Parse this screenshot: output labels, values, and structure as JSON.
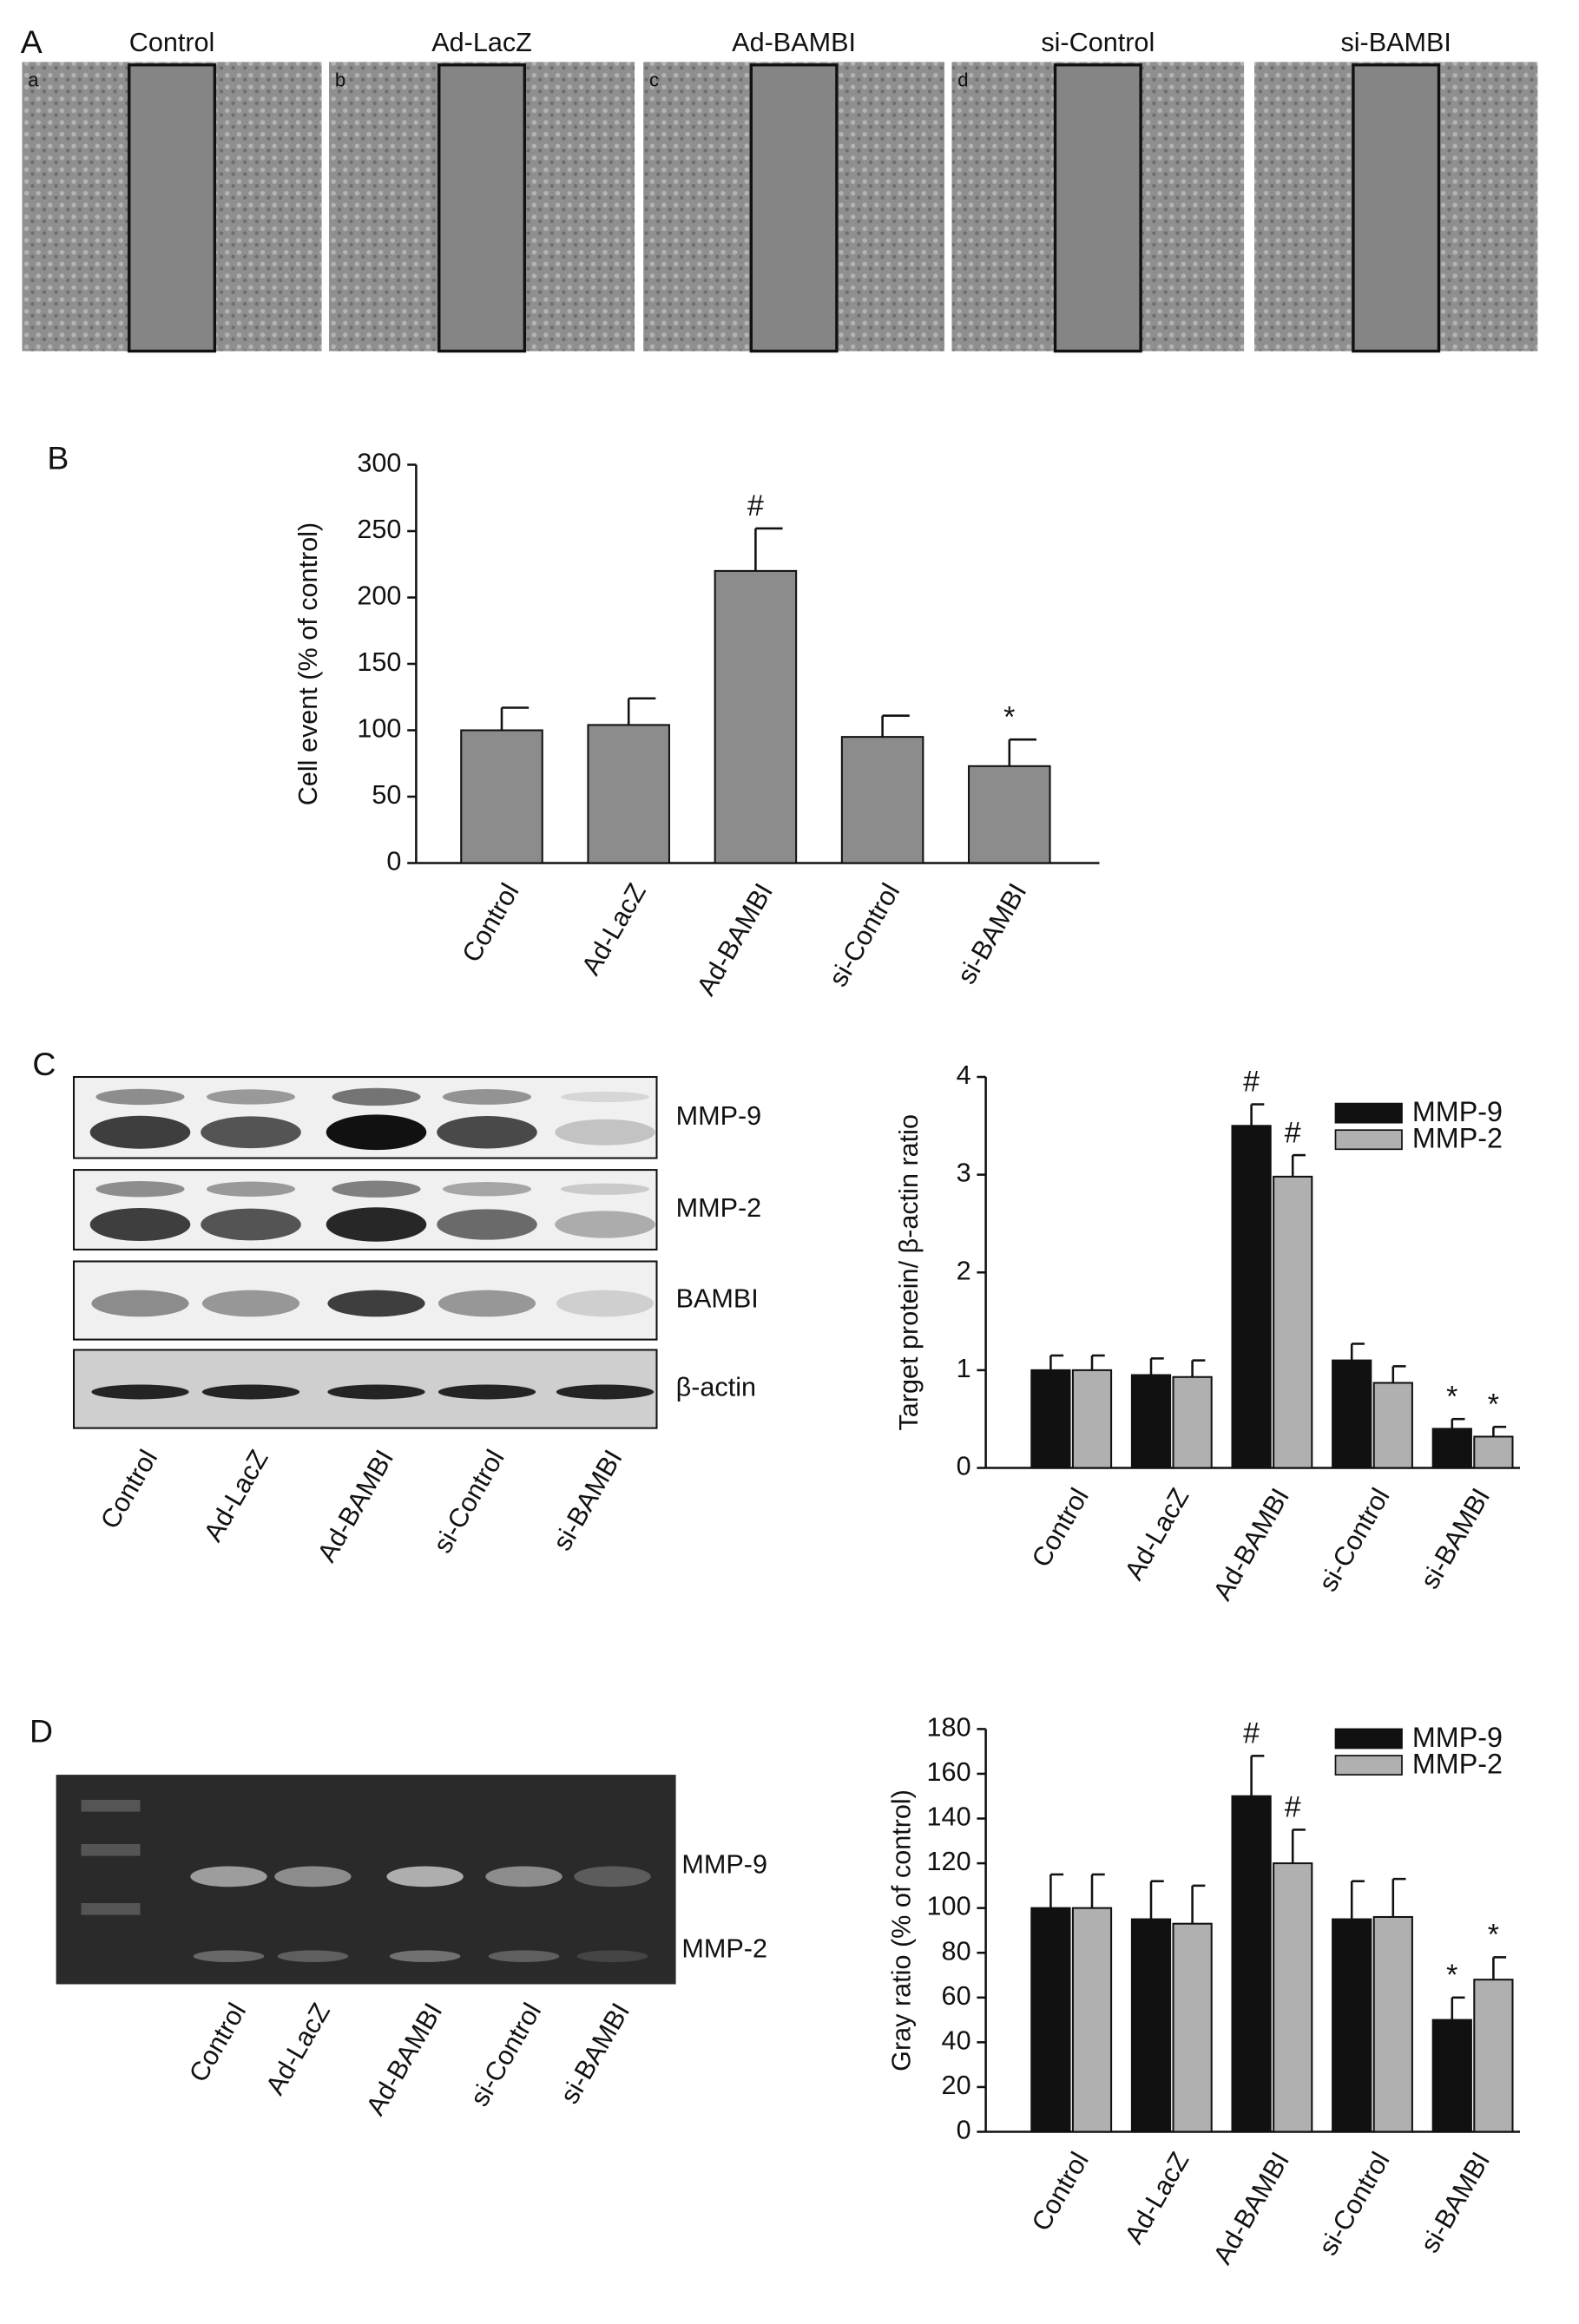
{
  "panel_labels": [
    "A",
    "B",
    "C",
    "D"
  ],
  "panel_a_images": [
    {
      "title": "Control",
      "letter": "a"
    },
    {
      "title": "Ad-LacZ",
      "letter": "b"
    },
    {
      "title": "Ad-BAMBI",
      "letter": "c"
    },
    {
      "title": "si-Control",
      "letter": "d"
    },
    {
      "title": "si-BAMBI",
      "letter": null
    }
  ],
  "blot_c": {
    "rows": [
      "MMP-9",
      "MMP-2",
      "BAMBI",
      "β-actin"
    ],
    "lanes": [
      "Control",
      "Ad-LacZ",
      "Ad-BAMBI",
      "si-Control",
      "si-BAMBI"
    ]
  },
  "gel_d": {
    "rows": [
      "MMP-9",
      "MMP-2"
    ],
    "lanes": [
      "Control",
      "Ad-LacZ",
      "Ad-BAMBI",
      "si-Control",
      "si-BAMBI"
    ]
  },
  "chart_data": [
    {
      "type": "bar",
      "ylabel": "Cell event (% of  control)",
      "categories": [
        "Control",
        "Ad-LacZ",
        "Ad-BAMBI",
        "si-Control",
        "si-BAMBI"
      ],
      "series": [
        {
          "name": null,
          "color": "#8c8c8c",
          "values": [
            100,
            104,
            220,
            95,
            73
          ],
          "errors": [
            17,
            20,
            32,
            16,
            20
          ],
          "marks": [
            null,
            null,
            "#",
            null,
            "*"
          ]
        }
      ],
      "ylim": [
        0,
        300
      ],
      "yticks": [
        0,
        50,
        100,
        150,
        200,
        250,
        300
      ]
    },
    {
      "type": "bar",
      "ylabel": "Target protein/ β-actin ratio",
      "categories": [
        "Control",
        "Ad-LacZ",
        "Ad-BAMBI",
        "si-Control",
        "si-BAMBI"
      ],
      "series": [
        {
          "name": "MMP-9",
          "color": "#111111",
          "values": [
            1.0,
            0.95,
            3.5,
            1.1,
            0.4
          ],
          "errors": [
            0.15,
            0.17,
            0.22,
            0.17,
            0.1
          ],
          "marks": [
            null,
            null,
            "#",
            null,
            "*"
          ]
        },
        {
          "name": "MMP-2",
          "color": "#b0b0b0",
          "values": [
            1.0,
            0.93,
            2.98,
            0.87,
            0.32
          ],
          "errors": [
            0.15,
            0.17,
            0.22,
            0.17,
            0.1
          ],
          "marks": [
            null,
            null,
            "#",
            null,
            "*"
          ]
        }
      ],
      "ylim": [
        0,
        4
      ],
      "yticks": [
        0,
        1,
        2,
        3,
        4
      ],
      "legend": "upper right"
    },
    {
      "type": "bar",
      "ylabel": "Gray ratio (% of control)",
      "categories": [
        "Control",
        "Ad-LacZ",
        "Ad-BAMBI",
        "si-Control",
        "si-BAMBI"
      ],
      "series": [
        {
          "name": "MMP-9",
          "color": "#111111",
          "values": [
            100,
            95,
            150,
            95,
            50
          ],
          "errors": [
            15,
            17,
            18,
            17,
            10
          ],
          "marks": [
            null,
            null,
            "#",
            null,
            "*"
          ]
        },
        {
          "name": "MMP-2",
          "color": "#b0b0b0",
          "values": [
            100,
            93,
            120,
            96,
            68
          ],
          "errors": [
            15,
            17,
            15,
            17,
            10
          ],
          "marks": [
            null,
            null,
            "#",
            null,
            "*"
          ]
        }
      ],
      "ylim": [
        0,
        180
      ],
      "yticks": [
        0,
        20,
        40,
        60,
        80,
        100,
        120,
        140,
        160,
        180
      ],
      "legend": "upper right"
    }
  ]
}
